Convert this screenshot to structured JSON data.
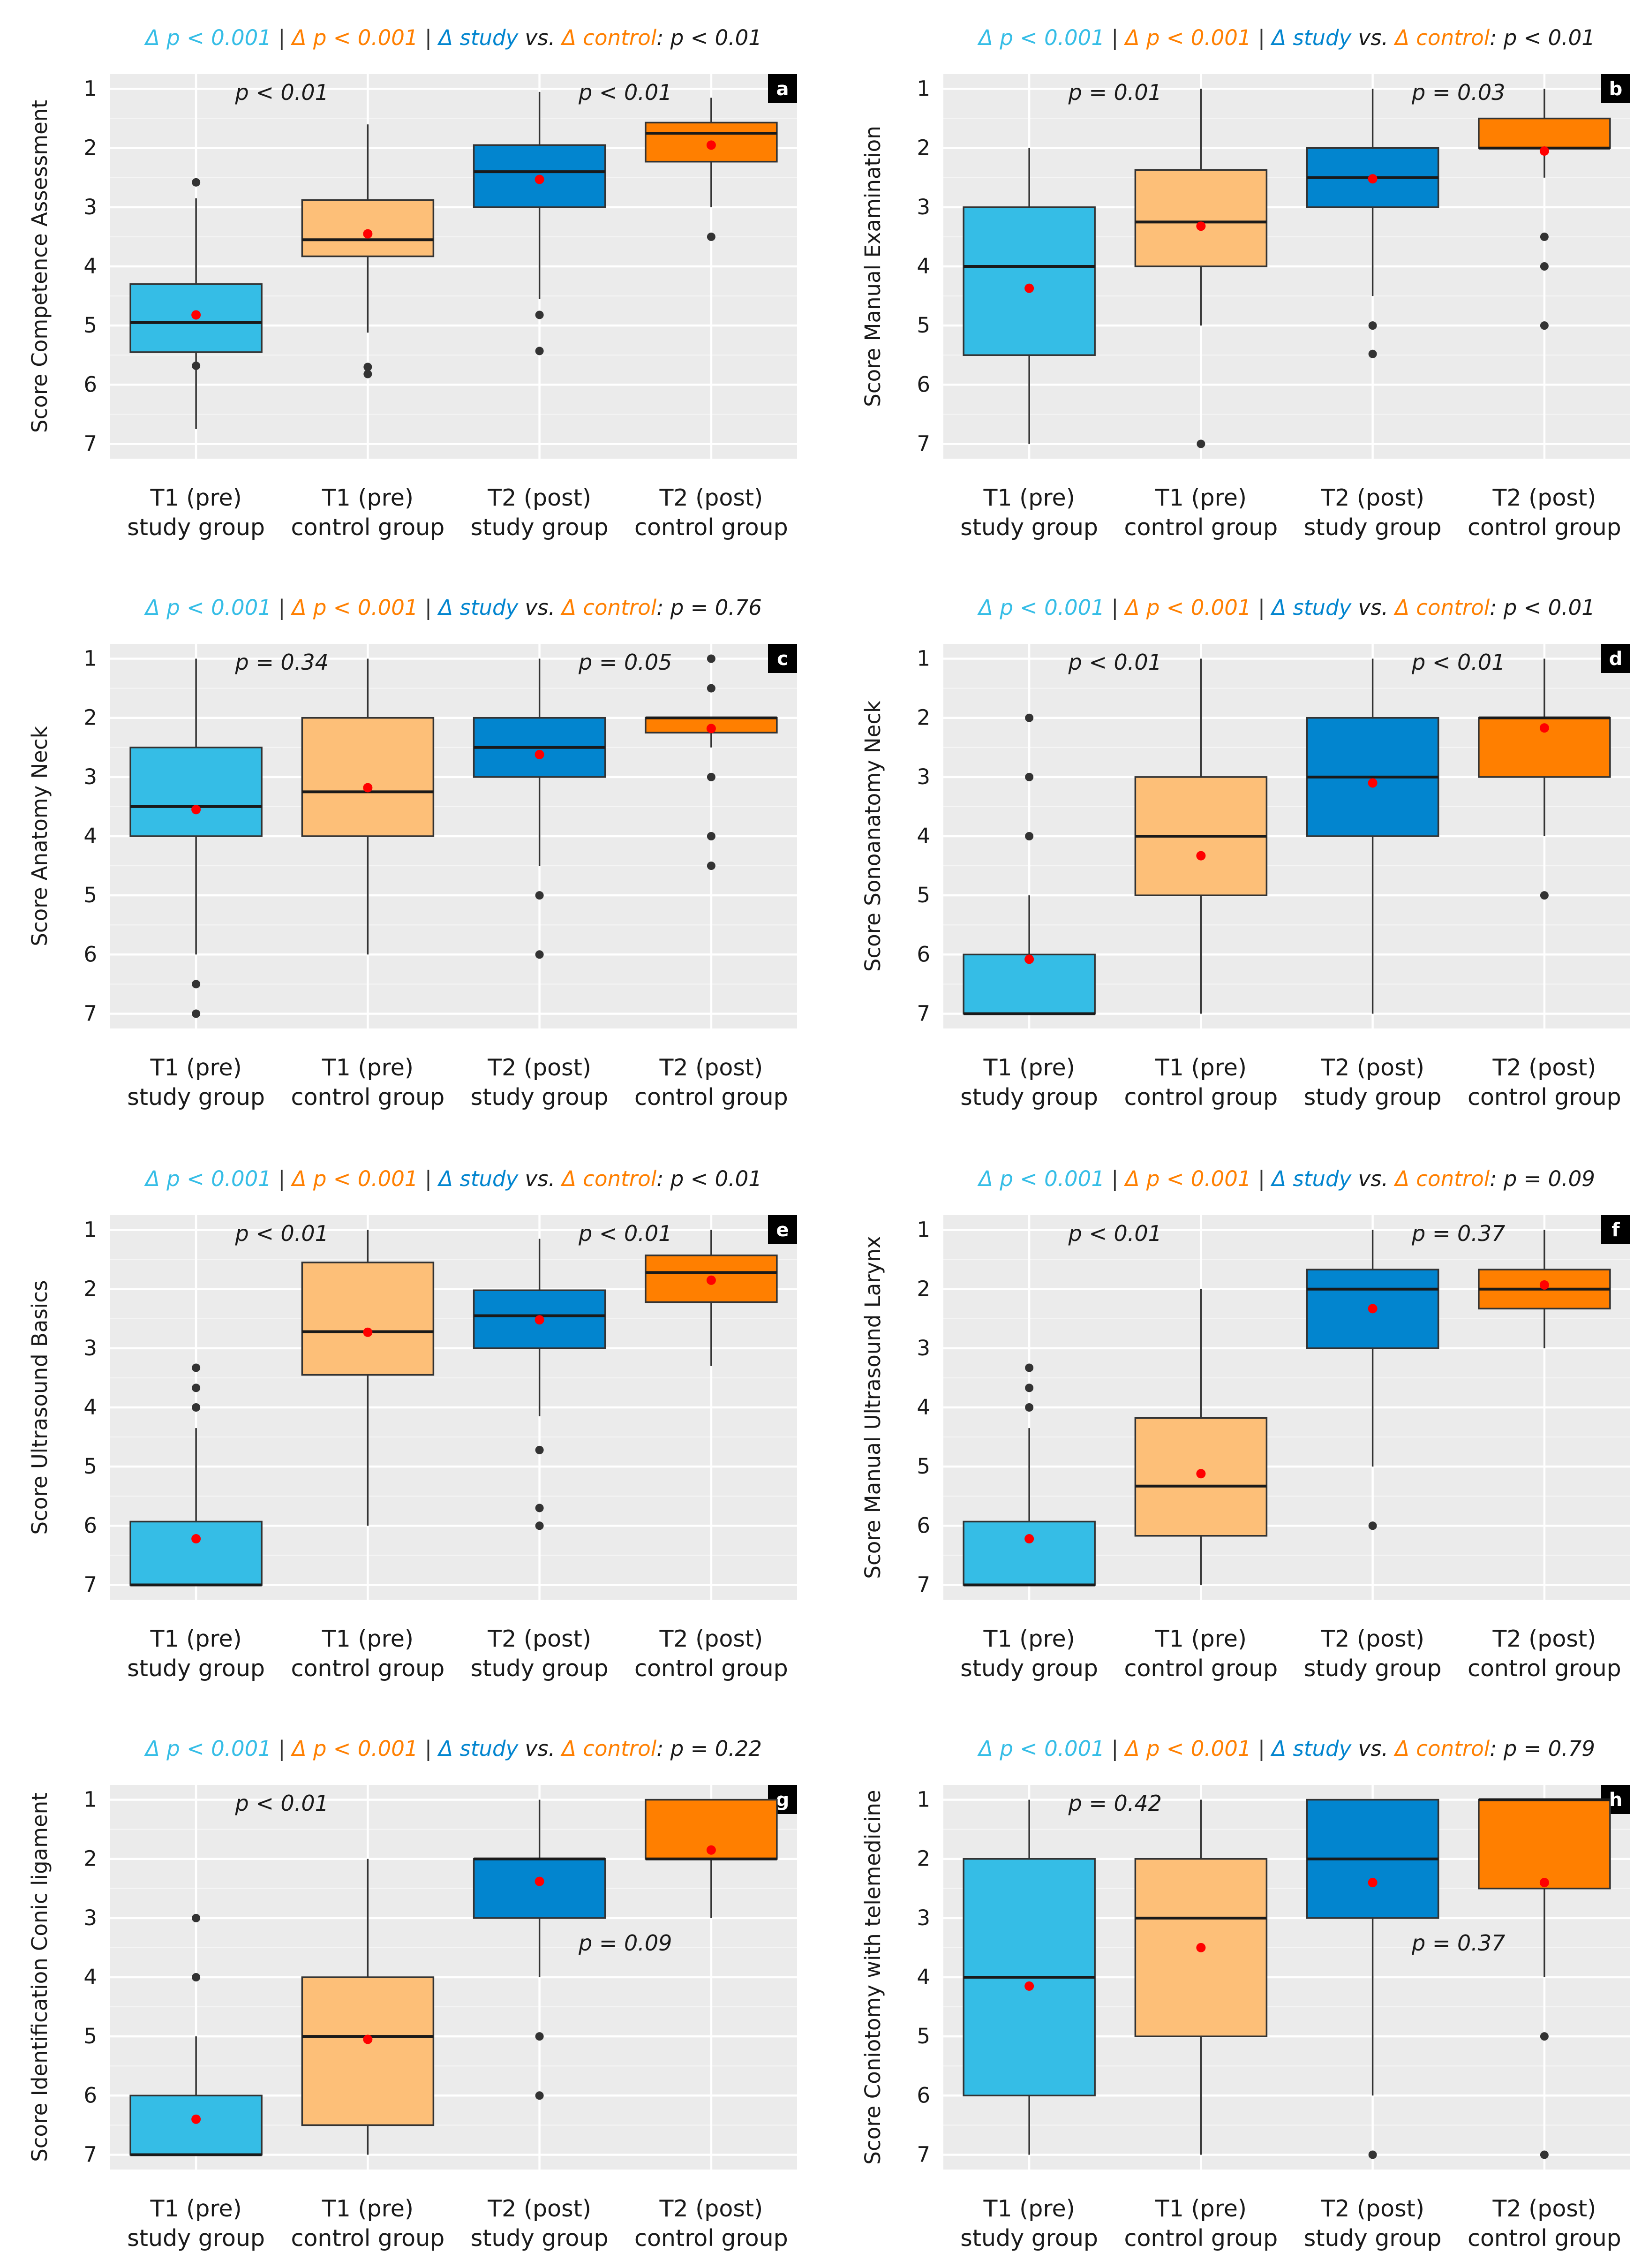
{
  "figure": {
    "x_categories": [
      [
        "T1 (pre)",
        "study group"
      ],
      [
        "T1 (pre)",
        "control group"
      ],
      [
        "T2 (post)",
        "study group"
      ],
      [
        "T2 (post)",
        "control group"
      ]
    ],
    "y_ticks": [
      1,
      2,
      3,
      4,
      5,
      6,
      7
    ],
    "title_parts": {
      "delta_study": "Δ p < 0.001",
      "delta_control": "Δ p < 0.001",
      "sep": " | ",
      "study": "Δ study",
      "vs": " vs. ",
      "control": "Δ control",
      "colon": ": "
    },
    "colors": {
      "study_t1": "#35bde6",
      "control_t1": "#fdbf78",
      "study_t2": "#0285cf",
      "control_t2": "#ff7f00",
      "mean": "#ff0000",
      "outlier": "#333333",
      "median": "#1a1a1a"
    }
  },
  "chart_data": [
    {
      "type": "box",
      "tag": "a",
      "ylabel": "Score Competence Assessment",
      "title_p": "p < 0.01",
      "y_inverted": true,
      "ylim": [
        7.25,
        0.75
      ],
      "p_t1": "p < 0.01",
      "p_t1_pos": "top",
      "p_t2": "p < 0.01",
      "p_t2_pos": "top",
      "boxes": [
        {
          "q1": 4.3,
          "median": 4.95,
          "q3": 5.45,
          "whisker_low": 2.85,
          "whisker_high": 6.75,
          "mean": 4.82,
          "outliers": [
            2.58,
            5.68
          ]
        },
        {
          "q1": 2.88,
          "median": 3.55,
          "q3": 3.83,
          "whisker_low": 1.6,
          "whisker_high": 5.12,
          "mean": 3.45,
          "outliers": [
            5.7,
            5.82
          ]
        },
        {
          "q1": 1.95,
          "median": 2.4,
          "q3": 3.0,
          "whisker_low": 1.05,
          "whisker_high": 4.55,
          "mean": 2.53,
          "outliers": [
            4.82,
            5.43
          ]
        },
        {
          "q1": 1.57,
          "median": 1.75,
          "q3": 2.23,
          "whisker_low": 1.15,
          "whisker_high": 3.0,
          "mean": 1.95,
          "outliers": [
            3.5
          ]
        }
      ]
    },
    {
      "type": "box",
      "tag": "b",
      "ylabel": "Score Manual Examination",
      "title_p": "p < 0.01",
      "y_inverted": true,
      "ylim": [
        7.25,
        0.75
      ],
      "p_t1": "p = 0.01",
      "p_t1_pos": "top",
      "p_t2": "p = 0.03",
      "p_t2_pos": "top",
      "boxes": [
        {
          "q1": 3.0,
          "median": 4.0,
          "q3": 5.5,
          "whisker_low": 2.0,
          "whisker_high": 7.0,
          "mean": 4.37,
          "outliers": []
        },
        {
          "q1": 2.37,
          "median": 3.25,
          "q3": 4.0,
          "whisker_low": 1.0,
          "whisker_high": 5.0,
          "mean": 3.32,
          "outliers": [
            7.0
          ]
        },
        {
          "q1": 2.0,
          "median": 2.5,
          "q3": 3.0,
          "whisker_low": 1.0,
          "whisker_high": 4.5,
          "mean": 2.52,
          "outliers": [
            5.0,
            5.48
          ]
        },
        {
          "q1": 1.5,
          "median": 2.0,
          "q3": 2.0,
          "whisker_low": 1.0,
          "whisker_high": 2.5,
          "mean": 2.05,
          "outliers": [
            3.5,
            4.0,
            5.0
          ]
        }
      ]
    },
    {
      "type": "box",
      "tag": "c",
      "ylabel": "Score Anatomy Neck",
      "title_p": "p = 0.76",
      "y_inverted": true,
      "ylim": [
        7.25,
        0.75
      ],
      "p_t1": "p = 0.34",
      "p_t1_pos": "top",
      "p_t2": "p = 0.05",
      "p_t2_pos": "top",
      "boxes": [
        {
          "q1": 2.5,
          "median": 3.5,
          "q3": 4.0,
          "whisker_low": 1.0,
          "whisker_high": 6.0,
          "mean": 3.55,
          "outliers": [
            6.5,
            7.0
          ]
        },
        {
          "q1": 2.0,
          "median": 3.25,
          "q3": 4.0,
          "whisker_low": 1.0,
          "whisker_high": 6.0,
          "mean": 3.18,
          "outliers": []
        },
        {
          "q1": 2.0,
          "median": 2.5,
          "q3": 3.0,
          "whisker_low": 1.0,
          "whisker_high": 4.5,
          "mean": 2.62,
          "outliers": [
            5.0,
            6.0
          ]
        },
        {
          "q1": 2.0,
          "median": 2.0,
          "q3": 2.25,
          "whisker_low": 2.0,
          "whisker_high": 2.5,
          "mean": 2.18,
          "outliers": [
            1.0,
            1.5,
            3.0,
            4.0,
            4.5
          ]
        }
      ]
    },
    {
      "type": "box",
      "tag": "d",
      "ylabel": "Score Sonoanatomy Neck",
      "title_p": "p < 0.01",
      "y_inverted": true,
      "ylim": [
        7.25,
        0.75
      ],
      "p_t1": "p < 0.01",
      "p_t1_pos": "top",
      "p_t2": "p < 0.01",
      "p_t2_pos": "top",
      "boxes": [
        {
          "q1": 6.0,
          "median": 7.0,
          "q3": 7.0,
          "whisker_low": 5.0,
          "whisker_high": 7.0,
          "mean": 6.08,
          "outliers": [
            2.0,
            3.0,
            4.0
          ]
        },
        {
          "q1": 3.0,
          "median": 4.0,
          "q3": 5.0,
          "whisker_low": 1.0,
          "whisker_high": 7.0,
          "mean": 4.33,
          "outliers": []
        },
        {
          "q1": 2.0,
          "median": 3.0,
          "q3": 4.0,
          "whisker_low": 1.0,
          "whisker_high": 7.0,
          "mean": 3.1,
          "outliers": []
        },
        {
          "q1": 2.0,
          "median": 2.0,
          "q3": 3.0,
          "whisker_low": 1.0,
          "whisker_high": 4.0,
          "mean": 2.17,
          "outliers": [
            5.0
          ]
        }
      ]
    },
    {
      "type": "box",
      "tag": "e",
      "ylabel": "Score Ultrasound Basics",
      "title_p": "p < 0.01",
      "y_inverted": true,
      "ylim": [
        7.25,
        0.75
      ],
      "p_t1": "p < 0.01",
      "p_t1_pos": "top",
      "p_t2": "p < 0.01",
      "p_t2_pos": "top",
      "boxes": [
        {
          "q1": 5.93,
          "median": 7.0,
          "q3": 7.0,
          "whisker_low": 4.35,
          "whisker_high": 7.0,
          "mean": 6.22,
          "outliers": [
            3.33,
            3.67,
            4.0
          ]
        },
        {
          "q1": 1.55,
          "median": 2.72,
          "q3": 3.45,
          "whisker_low": 1.0,
          "whisker_high": 6.0,
          "mean": 2.73,
          "outliers": []
        },
        {
          "q1": 2.02,
          "median": 2.45,
          "q3": 3.0,
          "whisker_low": 1.15,
          "whisker_high": 4.15,
          "mean": 2.52,
          "outliers": [
            4.72,
            5.7,
            6.0
          ]
        },
        {
          "q1": 1.43,
          "median": 1.72,
          "q3": 2.22,
          "whisker_low": 1.0,
          "whisker_high": 3.3,
          "mean": 1.85,
          "outliers": []
        }
      ]
    },
    {
      "type": "box",
      "tag": "f",
      "ylabel": "Score Manual Ultrasound Larynx",
      "title_p": "p = 0.09",
      "y_inverted": true,
      "ylim": [
        7.25,
        0.75
      ],
      "p_t1": "p < 0.01",
      "p_t1_pos": "top",
      "p_t2": "p = 0.37",
      "p_t2_pos": "top",
      "boxes": [
        {
          "q1": 5.93,
          "median": 7.0,
          "q3": 7.0,
          "whisker_low": 4.35,
          "whisker_high": 7.0,
          "mean": 6.22,
          "outliers": [
            3.33,
            3.67,
            4.0
          ]
        },
        {
          "q1": 4.18,
          "median": 5.33,
          "q3": 6.17,
          "whisker_low": 2.0,
          "whisker_high": 7.0,
          "mean": 5.12,
          "outliers": []
        },
        {
          "q1": 1.67,
          "median": 2.0,
          "q3": 3.0,
          "whisker_low": 1.0,
          "whisker_high": 5.0,
          "mean": 2.33,
          "outliers": [
            6.0
          ]
        },
        {
          "q1": 1.67,
          "median": 2.0,
          "q3": 2.33,
          "whisker_low": 1.0,
          "whisker_high": 3.0,
          "mean": 1.93,
          "outliers": []
        }
      ]
    },
    {
      "type": "box",
      "tag": "g",
      "ylabel": "Score Identification Conic ligament",
      "title_p": "p = 0.22",
      "y_inverted": true,
      "ylim": [
        7.25,
        0.75
      ],
      "p_t1": "p < 0.01",
      "p_t1_pos": "top",
      "p_t2": "p = 0.09",
      "p_t2_pos": "mid",
      "boxes": [
        {
          "q1": 6.0,
          "median": 7.0,
          "q3": 7.0,
          "whisker_low": 5.0,
          "whisker_high": 7.0,
          "mean": 6.4,
          "outliers": [
            3.0,
            4.0
          ]
        },
        {
          "q1": 4.0,
          "median": 5.0,
          "q3": 6.5,
          "whisker_low": 2.0,
          "whisker_high": 7.0,
          "mean": 5.05,
          "outliers": []
        },
        {
          "q1": 2.0,
          "median": 2.0,
          "q3": 3.0,
          "whisker_low": 1.0,
          "whisker_high": 4.0,
          "mean": 2.38,
          "outliers": [
            5.0,
            6.0
          ]
        },
        {
          "q1": 1.0,
          "median": 2.0,
          "q3": 2.0,
          "whisker_low": 1.0,
          "whisker_high": 3.0,
          "mean": 1.85,
          "outliers": []
        }
      ]
    },
    {
      "type": "box",
      "tag": "h",
      "ylabel": "Score Coniotomy with telemedicine",
      "title_p": "p = 0.79",
      "y_inverted": true,
      "ylim": [
        7.25,
        0.75
      ],
      "p_t1": "p = 0.42",
      "p_t1_pos": "top",
      "p_t2": "p = 0.37",
      "p_t2_pos": "mid",
      "boxes": [
        {
          "q1": 2.0,
          "median": 4.0,
          "q3": 6.0,
          "whisker_low": 1.0,
          "whisker_high": 7.0,
          "mean": 4.15,
          "outliers": []
        },
        {
          "q1": 2.0,
          "median": 3.0,
          "q3": 5.0,
          "whisker_low": 1.0,
          "whisker_high": 7.0,
          "mean": 3.5,
          "outliers": []
        },
        {
          "q1": 1.0,
          "median": 2.0,
          "q3": 3.0,
          "whisker_low": 1.0,
          "whisker_high": 6.0,
          "mean": 2.4,
          "outliers": [
            7.0
          ]
        },
        {
          "q1": 1.0,
          "median": 1.0,
          "q3": 2.5,
          "whisker_low": 1.0,
          "whisker_high": 4.0,
          "mean": 2.4,
          "outliers": [
            5.0,
            7.0
          ]
        }
      ]
    }
  ]
}
